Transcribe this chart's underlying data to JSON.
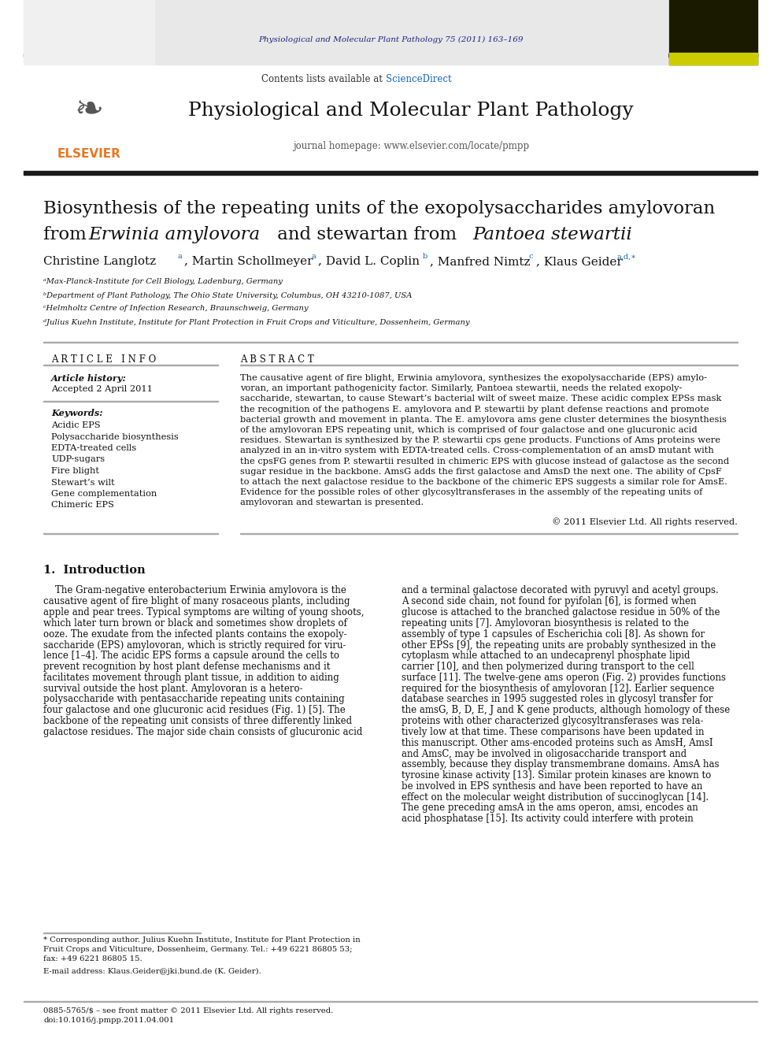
{
  "page_width": 9.92,
  "page_height": 13.23,
  "bg_color": "#ffffff",
  "journal_ref_text": "Physiological and Molecular Plant Pathology 75 (2011) 163–169",
  "journal_ref_color": "#1a237e",
  "contents_text": "Contents lists available at ",
  "sciencedirect_text": "ScienceDirect",
  "sciencedirect_color": "#1565c0",
  "journal_name": "Physiological and Molecular Plant Pathology",
  "journal_homepage": "journal homepage: www.elsevier.com/locate/pmpp",
  "header_bg": "#e8e8e8",
  "article_title_line1": "Biosynthesis of the repeating units of the exopolysaccharides amylovoran",
  "article_title_line2_normal": "from ",
  "article_title_line2_italic": "Erwinia amylovora",
  "article_title_line2_normal2": " and stewartan from ",
  "article_title_line2_italic2": "Pantoea stewartii",
  "affil_a": "ᵃMax-Planck-Institute for Cell Biology, Ladenburg, Germany",
  "affil_b": "ᵇDepartment of Plant Pathology, The Ohio State University, Columbus, OH 43210-1087, USA",
  "affil_c": "ᶜHelmholtz Centre of Infection Research, Braunschweig, Germany",
  "affil_d": "ᵈJulius Kuehn Institute, Institute for Plant Protection in Fruit Crops and Viticulture, Dossenheim, Germany",
  "article_info_header": "ARTICLE INFO",
  "abstract_header": "ABSTRACT",
  "article_history_label": "Article history:",
  "accepted_text": "Accepted 2 April 2011",
  "keywords_label": "Keywords:",
  "keywords": [
    "Acidic EPS",
    "Polysaccharide biosynthesis",
    "EDTA-treated cells",
    "UDP-sugars",
    "Fire blight",
    "Stewart’s wilt",
    "Gene complementation",
    "Chimeric EPS"
  ],
  "copyright_text": "© 2011 Elsevier Ltd. All rights reserved.",
  "intro_header": "1.  Introduction",
  "footnote_email": "E-mail address: Klaus.Geider@jki.bund.de (K. Geider).",
  "dark_bar_color": "#1a1a1a",
  "orange_color": "#e87722",
  "blue_link_color": "#1565c0",
  "dark_blue_color": "#1a237e",
  "abstract_lines": [
    "The causative agent of fire blight, Erwinia amylovora, synthesizes the exopolysaccharide (EPS) amylo-",
    "voran, an important pathogenicity factor. Similarly, Pantoea stewartii, needs the related exopoly-",
    "saccharide, stewartan, to cause Stewart’s bacterial wilt of sweet maize. These acidic complex EPSs mask",
    "the recognition of the pathogens E. amylovora and P. stewartii by plant defense reactions and promote",
    "bacterial growth and movement in planta. The E. amylovora ams gene cluster determines the biosynthesis",
    "of the amylovoran EPS repeating unit, which is comprised of four galactose and one glucuronic acid",
    "residues. Stewartan is synthesized by the P. stewartii cps gene products. Functions of Ams proteins were",
    "analyzed in an in-vitro system with EDTA-treated cells. Cross-complementation of an amsD mutant with",
    "the cpsFG genes from P. stewartii resulted in chimeric EPS with glucose instead of galactose as the second",
    "sugar residue in the backbone. AmsG adds the first galactose and AmsD the next one. The ability of CpsF",
    "to attach the next galactose residue to the backbone of the chimeric EPS suggests a similar role for AmsE.",
    "Evidence for the possible roles of other glycosyltransferases in the assembly of the repeating units of",
    "amylovoran and stewartan is presented."
  ],
  "col1_lines": [
    "    The Gram-negative enterobacterium Erwinia amylovora is the",
    "causative agent of fire blight of many rosaceous plants, including",
    "apple and pear trees. Typical symptoms are wilting of young shoots,",
    "which later turn brown or black and sometimes show droplets of",
    "ooze. The exudate from the infected plants contains the exopoly-",
    "saccharide (EPS) amylovoran, which is strictly required for viru-",
    "lence [1–4]. The acidic EPS forms a capsule around the cells to",
    "prevent recognition by host plant defense mechanisms and it",
    "facilitates movement through plant tissue, in addition to aiding",
    "survival outside the host plant. Amylovoran is a hetero-",
    "polysaccharide with pentasaccharide repeating units containing",
    "four galactose and one glucuronic acid residues (Fig. 1) [5]. The",
    "backbone of the repeating unit consists of three differently linked",
    "galactose residues. The major side chain consists of glucuronic acid"
  ],
  "col2_lines": [
    "and a terminal galactose decorated with pyruvyl and acetyl groups.",
    "A second side chain, not found for pyifolan [6], is formed when",
    "glucose is attached to the branched galactose residue in 50% of the",
    "repeating units [7]. Amylovoran biosynthesis is related to the",
    "assembly of type 1 capsules of Escherichia coli [8]. As shown for",
    "other EPSs [9], the repeating units are probably synthesized in the",
    "cytoplasm while attached to an undecaprenyl phosphate lipid",
    "carrier [10], and then polymerized during transport to the cell",
    "surface [11]. The twelve-gene ams operon (Fig. 2) provides functions",
    "required for the biosynthesis of amylovoran [12]. Earlier sequence",
    "database searches in 1995 suggested roles in glycosyl transfer for",
    "the amsG, B, D, E, J and K gene products, although homology of these",
    "proteins with other characterized glycosyltransferases was rela-",
    "tively low at that time. These comparisons have been updated in",
    "this manuscript. Other ams-encoded proteins such as AmsH, AmsI",
    "and AmsC, may be involved in oligosaccharide transport and",
    "assembly, because they display transmembrane domains. AmsA has",
    "tyrosine kinase activity [13]. Similar protein kinases are known to",
    "be involved in EPS synthesis and have been reported to have an",
    "effect on the molecular weight distribution of succinoglycan [14].",
    "The gene preceding amsA in the ams operon, amsi, encodes an",
    "acid phosphatase [15]. Its activity could interfere with protein"
  ],
  "fn_lines": [
    "* Corresponding author. Julius Kuehn Institute, Institute for Plant Protection in",
    "Fruit Crops and Viticulture, Dossenheim, Germany. Tel.: +49 6221 86805 53;",
    "fax: +49 6221 86805 15."
  ]
}
